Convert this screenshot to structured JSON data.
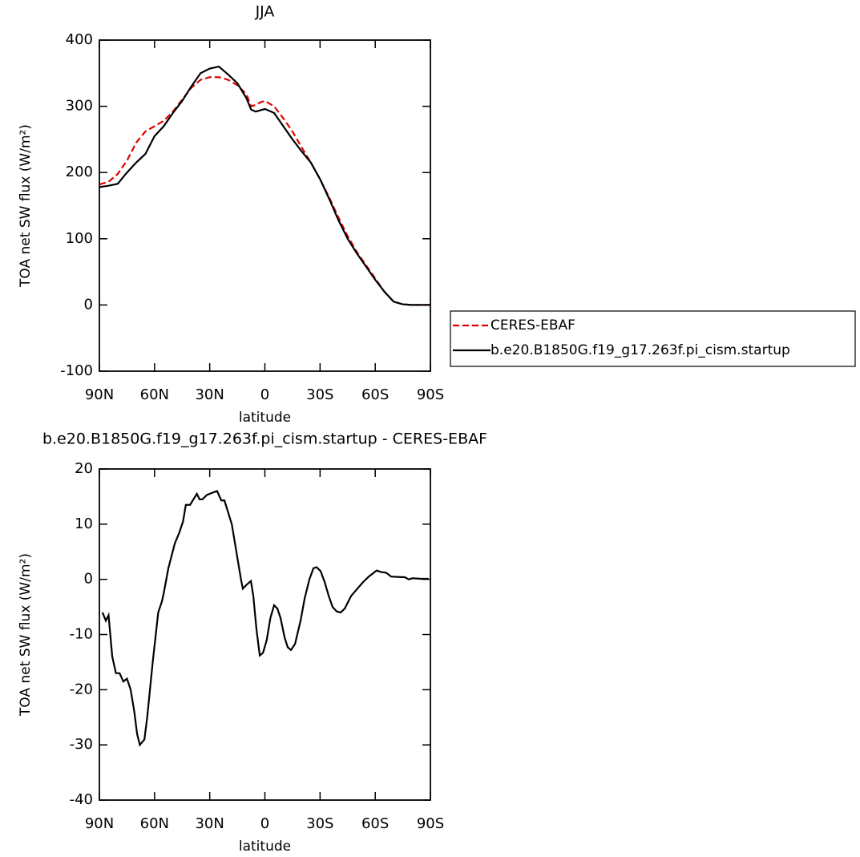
{
  "chart_data": [
    {
      "type": "line",
      "title": "JJA",
      "xlabel": "latitude",
      "ylabel": "TOA net SW flux (W/m²)",
      "x": [
        90,
        85,
        80,
        75,
        70,
        65,
        60,
        55,
        50,
        45,
        40,
        35,
        30,
        25,
        20,
        15,
        10,
        7.5,
        5,
        2.5,
        0,
        -5,
        -10,
        -15,
        -20,
        -25,
        -30,
        -35,
        -40,
        -45,
        -50,
        -55,
        -60,
        -65,
        -70,
        -75,
        -80,
        -85,
        -90
      ],
      "series": [
        {
          "name": "CERES-EBAF",
          "color": "#e00000",
          "dash": true,
          "values": [
            182,
            186,
            198,
            218,
            245,
            262,
            270,
            278,
            292,
            310,
            328,
            340,
            344,
            344,
            340,
            332,
            318,
            300,
            302,
            306,
            308,
            300,
            282,
            262,
            238,
            215,
            190,
            162,
            132,
            104,
            80,
            60,
            40,
            20,
            5,
            1,
            0,
            0,
            0
          ]
        },
        {
          "name": "b.e20.B1850G.f19_g17.263f.pi_cism.startup",
          "color": "#000000",
          "dash": false,
          "values": [
            178,
            180,
            183,
            200,
            215,
            228,
            255,
            270,
            290,
            308,
            330,
            350,
            357,
            360,
            348,
            335,
            312,
            295,
            292,
            294,
            296,
            290,
            270,
            250,
            232,
            215,
            190,
            160,
            128,
            100,
            78,
            58,
            38,
            20,
            5,
            1,
            0,
            0,
            0
          ]
        }
      ],
      "xlim": [
        90,
        -90
      ],
      "xticks": [
        {
          "value": 90,
          "label": "90N"
        },
        {
          "value": 60,
          "label": "60N"
        },
        {
          "value": 30,
          "label": "30N"
        },
        0,
        {
          "value": -30,
          "label": "30S"
        },
        {
          "value": -60,
          "label": "60S"
        },
        {
          "value": -90,
          "label": "90S"
        }
      ],
      "ylim": [
        -100,
        400
      ],
      "yticks": [
        -100,
        0,
        100,
        200,
        300,
        400
      ],
      "legend": "right"
    },
    {
      "type": "line",
      "title": "b.e20.B1850G.f19_g17.263f.pi_cism.startup - CERES-EBAF",
      "xlabel": "latitude",
      "ylabel": "TOA net SW flux (W/m²)",
      "x": [
        88.3,
        86.5,
        85,
        83,
        81,
        79,
        77,
        75,
        73,
        71,
        69.5,
        68,
        65.5,
        64,
        61,
        58,
        56,
        55,
        52.5,
        49,
        46.5,
        44.5,
        43,
        40.7,
        37,
        35.5,
        34,
        31.5,
        27.7,
        26,
        23.7,
        22,
        18,
        16,
        13,
        12,
        10,
        7.6,
        6.3,
        4.6,
        2.8,
        1,
        -1,
        -3,
        -5,
        -6.8,
        -8.5,
        -10.7,
        -12.4,
        -14.2,
        -16.4,
        -19.4,
        -21.6,
        -24.2,
        -26.4,
        -28.1,
        -30.3,
        -32.5,
        -34.7,
        -36.8,
        -39,
        -41.2,
        -43.4,
        -46.9,
        -50,
        -53.4,
        -56.5,
        -60.8,
        -63.4,
        -66,
        -68.6,
        -73.9,
        -76,
        -78.2,
        -80.4,
        -84.7,
        -89
      ],
      "values": [
        -6,
        -7.5,
        -6.5,
        -14,
        -17,
        -17,
        -18.5,
        -18,
        -20,
        -24,
        -28,
        -30,
        -29,
        -25,
        -15,
        -6,
        -4,
        -2.5,
        2,
        6.5,
        8.5,
        10.5,
        13.5,
        13.5,
        15.5,
        14.5,
        14.5,
        15.3,
        15.8,
        16,
        14.3,
        14.3,
        10,
        6,
        0,
        -1.7,
        -1,
        -0.3,
        -3,
        -9,
        -13.8,
        -13.3,
        -11,
        -7,
        -4.7,
        -5.3,
        -7,
        -10.5,
        -12.3,
        -12.8,
        -11.7,
        -7.5,
        -3.5,
        0,
        2,
        2.2,
        1.5,
        -0.5,
        -3,
        -5,
        -5.8,
        -6,
        -5.3,
        -3,
        -1.8,
        -0.5,
        0.5,
        1.6,
        1.3,
        1.2,
        0.5,
        0.4,
        0.4,
        0,
        0.2,
        0.1,
        0.1
      ],
      "color": "#000000",
      "xlim": [
        90,
        -90
      ],
      "xticks": [
        {
          "value": 90,
          "label": "90N"
        },
        {
          "value": 60,
          "label": "60N"
        },
        {
          "value": 30,
          "label": "30N"
        },
        0,
        {
          "value": -30,
          "label": "30S"
        },
        {
          "value": -60,
          "label": "60S"
        },
        {
          "value": -90,
          "label": "90S"
        }
      ],
      "ylim": [
        -40,
        20
      ],
      "yticks": [
        -40,
        -30,
        -20,
        -10,
        0,
        10,
        20
      ]
    }
  ]
}
